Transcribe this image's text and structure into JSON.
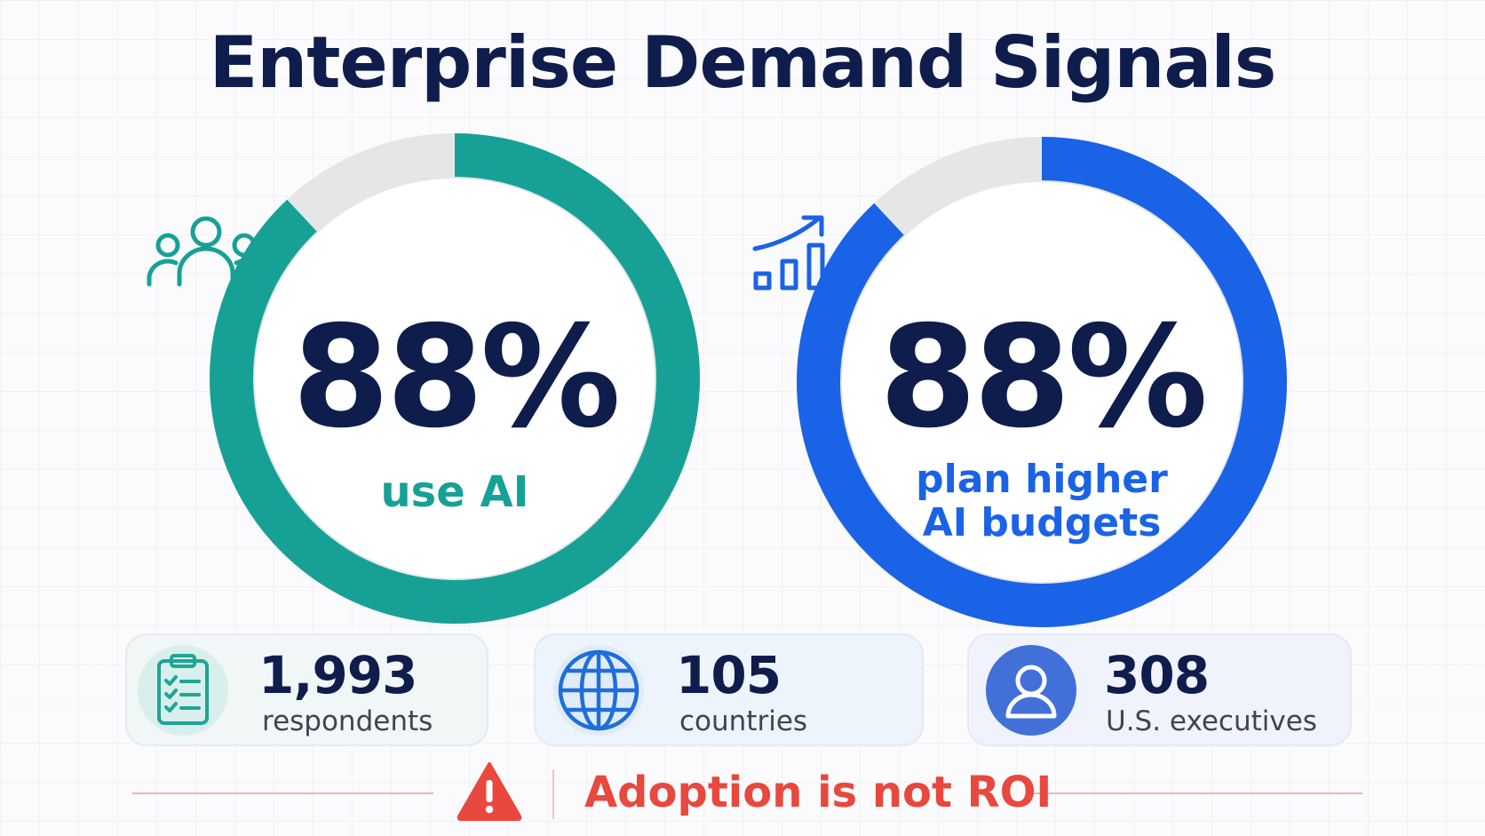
{
  "title": "Enterprise Demand Signals",
  "gauges": [
    {
      "value_text": "88%",
      "percent": 88,
      "label_lines": [
        "use AI"
      ],
      "color": "#17a196",
      "icon": "people-group-icon"
    },
    {
      "value_text": "88%",
      "percent": 88,
      "label_lines": [
        "plan higher",
        "AI budgets"
      ],
      "color": "#1a63e6",
      "icon": "growth-chart-icon"
    }
  ],
  "stats": [
    {
      "number": "1,993",
      "label": "respondents",
      "icon": "clipboard-checklist-icon",
      "color": "#1ea596"
    },
    {
      "number": "105",
      "label": "countries",
      "icon": "globe-icon",
      "color": "#1e6fd9"
    },
    {
      "number": "308",
      "label": "U.S. executives",
      "icon": "user-icon",
      "color": "#4170d8"
    }
  ],
  "callout": {
    "text": "Adoption is not ROI",
    "icon": "warning-triangle-icon",
    "color": "#e8483d"
  },
  "colors": {
    "title": "#0f1d4d",
    "track": "#e6e6e9"
  }
}
